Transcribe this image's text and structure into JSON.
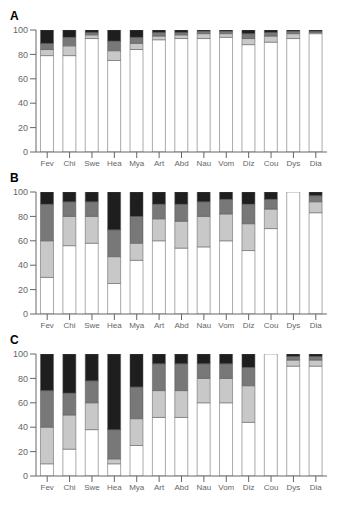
{
  "chart_data": [
    {
      "type": "bar",
      "title": "A",
      "stacked": true,
      "grid": false,
      "categories": [
        "Fev",
        "Chi",
        "Swe",
        "Hea",
        "Mya",
        "Art",
        "Abd",
        "Nau",
        "Vom",
        "Diz",
        "Cou",
        "Dys",
        "Dia"
      ],
      "series": [
        {
          "color": "white",
          "values": [
            79,
            79,
            93,
            75,
            84,
            92,
            93,
            93,
            94,
            88,
            90,
            93,
            97
          ]
        },
        {
          "color": "#c8c8c8",
          "values": [
            5,
            8,
            3,
            8,
            5,
            3,
            3,
            4,
            3,
            5,
            5,
            4,
            1
          ]
        },
        {
          "color": "#787878",
          "values": [
            5,
            7,
            2,
            8,
            5,
            3,
            2,
            2,
            2,
            4,
            3,
            2,
            1
          ]
        },
        {
          "color": "#1e1e1e",
          "values": [
            11,
            6,
            2,
            9,
            6,
            2,
            2,
            1,
            1,
            3,
            2,
            1,
            1
          ]
        }
      ],
      "ylim": [
        0,
        100
      ],
      "yticks": [
        0,
        20,
        40,
        60,
        80,
        100
      ]
    },
    {
      "type": "bar",
      "title": "B",
      "stacked": true,
      "grid": false,
      "categories": [
        "Fev",
        "Chi",
        "Swe",
        "Hea",
        "Mya",
        "Art",
        "Abd",
        "Nau",
        "Vom",
        "Diz",
        "Cou",
        "Dys",
        "Dia"
      ],
      "series": [
        {
          "color": "white",
          "values": [
            30,
            56,
            58,
            25,
            44,
            60,
            54,
            55,
            60,
            52,
            70,
            100,
            83
          ]
        },
        {
          "color": "#c8c8c8",
          "values": [
            30,
            24,
            22,
            22,
            14,
            18,
            22,
            25,
            22,
            22,
            16,
            0,
            9
          ]
        },
        {
          "color": "#787878",
          "values": [
            30,
            12,
            12,
            22,
            22,
            12,
            14,
            12,
            12,
            16,
            8,
            0,
            5
          ]
        },
        {
          "color": "#1e1e1e",
          "values": [
            10,
            8,
            8,
            31,
            20,
            10,
            10,
            8,
            6,
            10,
            6,
            0,
            3
          ]
        }
      ],
      "ylim": [
        0,
        100
      ],
      "yticks": [
        0,
        20,
        40,
        60,
        80,
        100
      ]
    },
    {
      "type": "bar",
      "title": "C",
      "stacked": true,
      "grid": false,
      "categories": [
        "Fev",
        "Chi",
        "Swe",
        "Hea",
        "Mya",
        "Art",
        "Abd",
        "Nau",
        "Vom",
        "Diz",
        "Cou",
        "Dys",
        "Dia"
      ],
      "series": [
        {
          "color": "white",
          "values": [
            10,
            22,
            38,
            10,
            25,
            48,
            48,
            60,
            60,
            44,
            100,
            90,
            90
          ]
        },
        {
          "color": "#c8c8c8",
          "values": [
            30,
            28,
            22,
            4,
            22,
            22,
            22,
            20,
            20,
            30,
            0,
            5,
            5
          ]
        },
        {
          "color": "#787878",
          "values": [
            30,
            18,
            18,
            24,
            26,
            22,
            22,
            12,
            12,
            15,
            0,
            3,
            3
          ]
        },
        {
          "color": "#1e1e1e",
          "values": [
            30,
            32,
            22,
            62,
            27,
            8,
            8,
            8,
            8,
            11,
            0,
            2,
            2
          ]
        }
      ],
      "ylim": [
        0,
        100
      ],
      "yticks": [
        0,
        20,
        40,
        60,
        80,
        100
      ]
    }
  ]
}
